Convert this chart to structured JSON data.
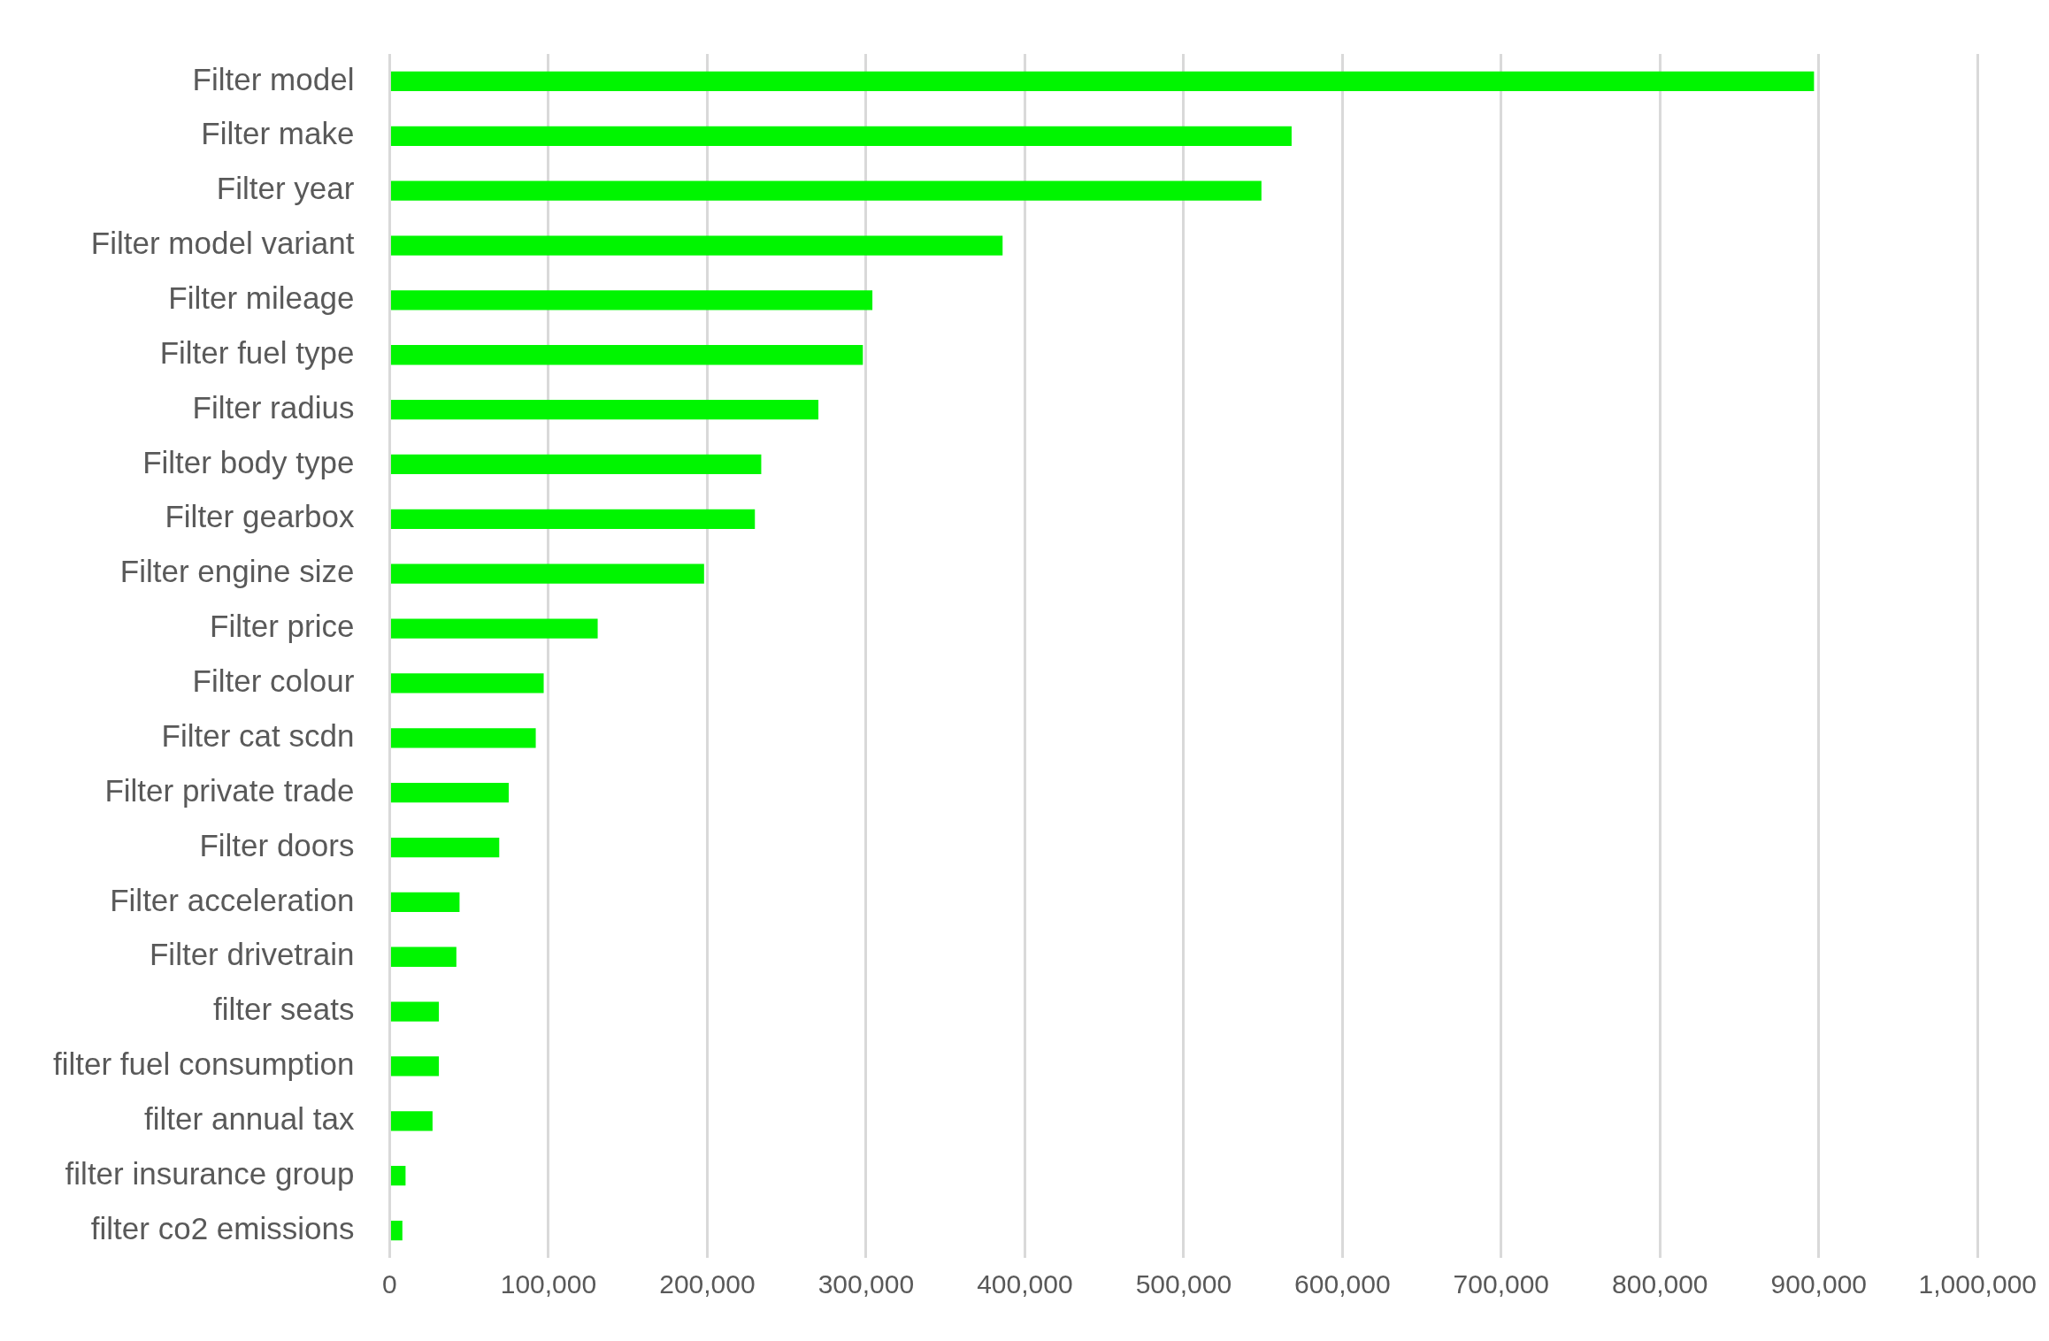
{
  "chart_data": {
    "type": "bar",
    "orientation": "horizontal",
    "categories": [
      "Filter model",
      "Filter make",
      "Filter year",
      "Filter model variant",
      "Filter mileage",
      "Filter fuel type",
      "Filter radius",
      "Filter body type",
      "Filter gearbox",
      "Filter engine size",
      "Filter price",
      "Filter colour",
      "Filter cat scdn",
      "Filter private trade",
      "Filter doors",
      "Filter acceleration",
      "Filter drivetrain",
      "filter seats",
      "filter fuel consumption",
      "filter annual tax",
      "filter insurance group",
      "filter co2 emissions"
    ],
    "values": [
      897000,
      568000,
      549000,
      386000,
      304000,
      298000,
      270000,
      234000,
      230000,
      198000,
      131000,
      97000,
      92000,
      75000,
      69000,
      44000,
      42000,
      31000,
      31000,
      27000,
      10000,
      8000
    ],
    "color": "#00f500",
    "xlim": [
      0,
      1000000
    ],
    "xticks": [
      {
        "value": 0,
        "label": "0"
      },
      {
        "value": 100000,
        "label": "100,000"
      },
      {
        "value": 200000,
        "label": "200,000"
      },
      {
        "value": 300000,
        "label": "300,000"
      },
      {
        "value": 400000,
        "label": "400,000"
      },
      {
        "value": 500000,
        "label": "500,000"
      },
      {
        "value": 600000,
        "label": "600,000"
      },
      {
        "value": 700000,
        "label": "700,000"
      },
      {
        "value": 800000,
        "label": "800,000"
      },
      {
        "value": 900000,
        "label": "900,000"
      },
      {
        "value": 1000000,
        "label": "1,000,000"
      }
    ],
    "grid": "x"
  }
}
